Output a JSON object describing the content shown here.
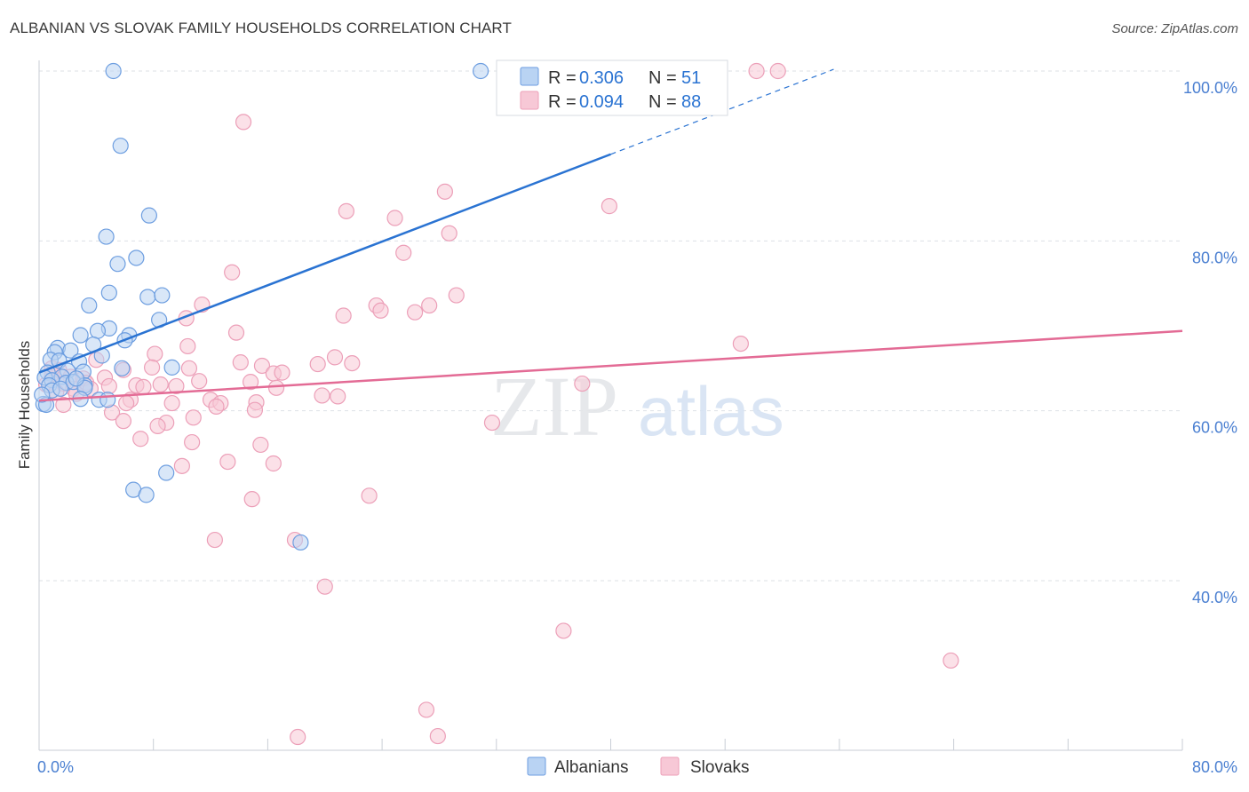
{
  "title": "ALBANIAN VS SLOVAK FAMILY HOUSEHOLDS CORRELATION CHART",
  "source": "Source: ZipAtlas.com",
  "watermark": {
    "zip": "ZIP",
    "atlas": "atlas"
  },
  "colors": {
    "blue": "#2a73d2",
    "blue_fill": "#b9d3f3",
    "blue_stroke": "#6d9ee0",
    "pink": "#e36b95",
    "pink_fill": "#f7c8d6",
    "pink_stroke": "#ec9fb8",
    "grid": "#dde1e6",
    "tick_text": "#4a7fd1"
  },
  "legend_box": [
    {
      "r_label": "R = ",
      "r_value": "0.306",
      "n_label": "N = ",
      "n_value": "51"
    },
    {
      "r_label": "R = ",
      "r_value": "0.094",
      "n_label": "N = ",
      "n_value": "88"
    }
  ],
  "chart_data": {
    "type": "scatter",
    "xlabel": "",
    "ylabel": "Family Households",
    "xlim": [
      0,
      80
    ],
    "ylim": [
      20,
      100
    ],
    "x_tick_labels": [
      "0.0%",
      "80.0%"
    ],
    "y_ticks": [
      40,
      60,
      80,
      100
    ],
    "y_tick_labels": [
      "40.0%",
      "60.0%",
      "80.0%",
      "100.0%"
    ],
    "grid": true,
    "legend_position": "bottom-center",
    "series": [
      {
        "name": "Albanians",
        "r": 0.306,
        "n": 51,
        "trend": {
          "x0": 0,
          "y0": 64.5,
          "x1": 40,
          "y1": 90.2,
          "x_dashed_end": 55.6,
          "y_dashed_end": 100.2
        },
        "points": [
          [
            5.2,
            100
          ],
          [
            30.9,
            100
          ],
          [
            5.7,
            91.2
          ],
          [
            7.7,
            83.0
          ],
          [
            4.7,
            80.5
          ],
          [
            6.8,
            78.0
          ],
          [
            5.5,
            77.3
          ],
          [
            4.9,
            73.9
          ],
          [
            7.6,
            73.4
          ],
          [
            8.6,
            73.6
          ],
          [
            3.5,
            72.4
          ],
          [
            8.4,
            70.7
          ],
          [
            4.9,
            69.7
          ],
          [
            4.1,
            69.4
          ],
          [
            2.9,
            68.9
          ],
          [
            6.3,
            68.9
          ],
          [
            6.0,
            68.3
          ],
          [
            3.8,
            67.8
          ],
          [
            1.3,
            67.4
          ],
          [
            2.2,
            67.1
          ],
          [
            4.4,
            66.5
          ],
          [
            1.1,
            66.9
          ],
          [
            0.8,
            66.0
          ],
          [
            2.8,
            65.8
          ],
          [
            1.4,
            65.9
          ],
          [
            5.8,
            65.0
          ],
          [
            9.3,
            65.1
          ],
          [
            0.6,
            64.5
          ],
          [
            2.0,
            64.7
          ],
          [
            3.1,
            64.6
          ],
          [
            1.6,
            64.0
          ],
          [
            0.4,
            63.9
          ],
          [
            0.9,
            63.6
          ],
          [
            1.9,
            63.3
          ],
          [
            2.4,
            63.4
          ],
          [
            3.2,
            63.0
          ],
          [
            0.7,
            63.0
          ],
          [
            0.9,
            62.4
          ],
          [
            3.2,
            62.7
          ],
          [
            2.9,
            61.4
          ],
          [
            4.2,
            61.3
          ],
          [
            4.8,
            61.3
          ],
          [
            0.3,
            60.8
          ],
          [
            0.5,
            60.7
          ],
          [
            8.9,
            52.7
          ],
          [
            6.6,
            50.7
          ],
          [
            7.5,
            50.1
          ],
          [
            18.3,
            44.5
          ],
          [
            0.2,
            61.9
          ],
          [
            1.5,
            62.6
          ],
          [
            2.6,
            63.8
          ]
        ]
      },
      {
        "name": "Slovaks",
        "r": 0.094,
        "n": 88,
        "trend": {
          "x0": 0,
          "y0": 61.2,
          "x1": 80,
          "y1": 69.4
        },
        "points": [
          [
            50.2,
            100
          ],
          [
            51.7,
            100
          ],
          [
            14.3,
            94.0
          ],
          [
            28.4,
            85.8
          ],
          [
            39.9,
            84.1
          ],
          [
            21.5,
            83.5
          ],
          [
            24.9,
            82.7
          ],
          [
            28.7,
            80.9
          ],
          [
            25.5,
            78.6
          ],
          [
            13.5,
            76.3
          ],
          [
            29.2,
            73.6
          ],
          [
            11.4,
            72.5
          ],
          [
            23.6,
            72.4
          ],
          [
            27.3,
            72.4
          ],
          [
            21.3,
            71.2
          ],
          [
            23.9,
            71.8
          ],
          [
            26.3,
            71.6
          ],
          [
            10.3,
            70.9
          ],
          [
            13.8,
            69.2
          ],
          [
            49.1,
            67.9
          ],
          [
            10.4,
            67.6
          ],
          [
            8.1,
            66.7
          ],
          [
            4.0,
            66.0
          ],
          [
            20.7,
            66.3
          ],
          [
            19.5,
            65.5
          ],
          [
            21.9,
            65.6
          ],
          [
            14.1,
            65.7
          ],
          [
            15.6,
            65.3
          ],
          [
            5.9,
            64.8
          ],
          [
            7.9,
            65.1
          ],
          [
            10.5,
            65.0
          ],
          [
            16.4,
            64.4
          ],
          [
            17.0,
            64.5
          ],
          [
            0.9,
            64.3
          ],
          [
            1.4,
            64.8
          ],
          [
            2.2,
            64.0
          ],
          [
            3.1,
            63.8
          ],
          [
            4.6,
            63.9
          ],
          [
            0.5,
            63.1
          ],
          [
            1.7,
            63.2
          ],
          [
            3.3,
            63.3
          ],
          [
            6.8,
            63.0
          ],
          [
            8.5,
            63.1
          ],
          [
            14.8,
            63.4
          ],
          [
            38.0,
            63.2
          ],
          [
            2.4,
            62.6
          ],
          [
            4.9,
            62.9
          ],
          [
            7.3,
            62.8
          ],
          [
            9.6,
            62.9
          ],
          [
            16.6,
            62.7
          ],
          [
            19.8,
            61.8
          ],
          [
            20.9,
            61.7
          ],
          [
            12.0,
            61.3
          ],
          [
            6.4,
            61.3
          ],
          [
            6.1,
            60.9
          ],
          [
            9.3,
            60.9
          ],
          [
            12.7,
            60.9
          ],
          [
            12.4,
            60.5
          ],
          [
            15.2,
            61.0
          ],
          [
            15.1,
            60.1
          ],
          [
            1.7,
            60.7
          ],
          [
            5.1,
            59.8
          ],
          [
            10.8,
            59.2
          ],
          [
            5.9,
            58.8
          ],
          [
            8.9,
            58.6
          ],
          [
            8.3,
            58.2
          ],
          [
            31.7,
            58.6
          ],
          [
            7.1,
            56.7
          ],
          [
            10.7,
            56.3
          ],
          [
            15.5,
            56.0
          ],
          [
            13.2,
            54.0
          ],
          [
            16.4,
            53.8
          ],
          [
            10.0,
            53.5
          ],
          [
            23.1,
            50.0
          ],
          [
            14.9,
            49.6
          ],
          [
            12.3,
            44.8
          ],
          [
            17.9,
            44.8
          ],
          [
            20.0,
            39.3
          ],
          [
            36.7,
            34.1
          ],
          [
            63.8,
            30.6
          ],
          [
            27.1,
            24.8
          ],
          [
            18.1,
            21.6
          ],
          [
            27.9,
            21.7
          ],
          [
            0.9,
            65.0
          ],
          [
            1.2,
            62.2
          ],
          [
            2.6,
            62.0
          ],
          [
            3.6,
            62.6
          ],
          [
            11.2,
            63.5
          ]
        ]
      }
    ]
  },
  "bottom_legend": [
    {
      "label": "Albanians"
    },
    {
      "label": "Slovaks"
    }
  ]
}
